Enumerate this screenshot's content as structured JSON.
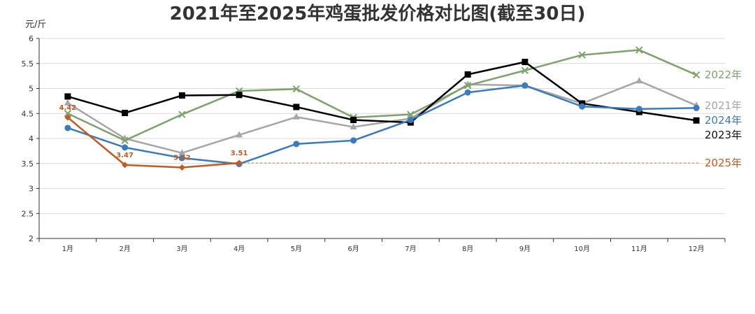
{
  "chart_data": {
    "type": "line",
    "title": "2021年至2025年鸡蛋批发价格对比图(截至30日)",
    "unit_label": "元/斤",
    "xlabel": "",
    "ylabel": "元/斤",
    "ylim": [
      2,
      6
    ],
    "yticks": [
      "2",
      "2.5",
      "3",
      "3.5",
      "4",
      "4.5",
      "5",
      "5.5",
      "6"
    ],
    "categories": [
      "1月",
      "2月",
      "3月",
      "4月",
      "5月",
      "6月",
      "7月",
      "8月",
      "9月",
      "10月",
      "11月",
      "12月"
    ],
    "grid": true,
    "legend_placement": "right-end labels",
    "series": [
      {
        "name": "2021年",
        "color": "#a6a6a6",
        "marker": "triangle",
        "values": [
          4.71,
          4.0,
          3.71,
          4.07,
          4.43,
          4.23,
          4.4,
          5.08,
          5.06,
          4.7,
          5.15,
          4.66
        ]
      },
      {
        "name": "2022年",
        "color": "#7da36a",
        "marker": "x",
        "values": [
          4.5,
          3.96,
          4.48,
          4.95,
          4.99,
          4.42,
          4.48,
          5.06,
          5.36,
          5.67,
          5.77,
          5.27
        ]
      },
      {
        "name": "2023年",
        "color": "#000000",
        "marker": "square",
        "values": [
          4.84,
          4.51,
          4.86,
          4.87,
          4.63,
          4.37,
          4.32,
          5.28,
          5.53,
          4.7,
          4.53,
          4.36
        ]
      },
      {
        "name": "2024年",
        "color": "#3a7bbf",
        "marker": "circle",
        "values": [
          4.21,
          3.82,
          3.61,
          3.49,
          3.89,
          3.96,
          4.37,
          4.92,
          5.06,
          4.64,
          4.59,
          4.61
        ]
      },
      {
        "name": "2025年",
        "color": "#c55a1f",
        "marker": "diamond",
        "values": [
          4.42,
          3.47,
          3.42,
          3.51,
          null,
          null,
          null,
          null,
          null,
          null,
          null,
          null
        ],
        "data_labels": [
          "4.42",
          "3.47",
          "3.42",
          "3.51"
        ],
        "reference_line": 3.51
      }
    ]
  }
}
